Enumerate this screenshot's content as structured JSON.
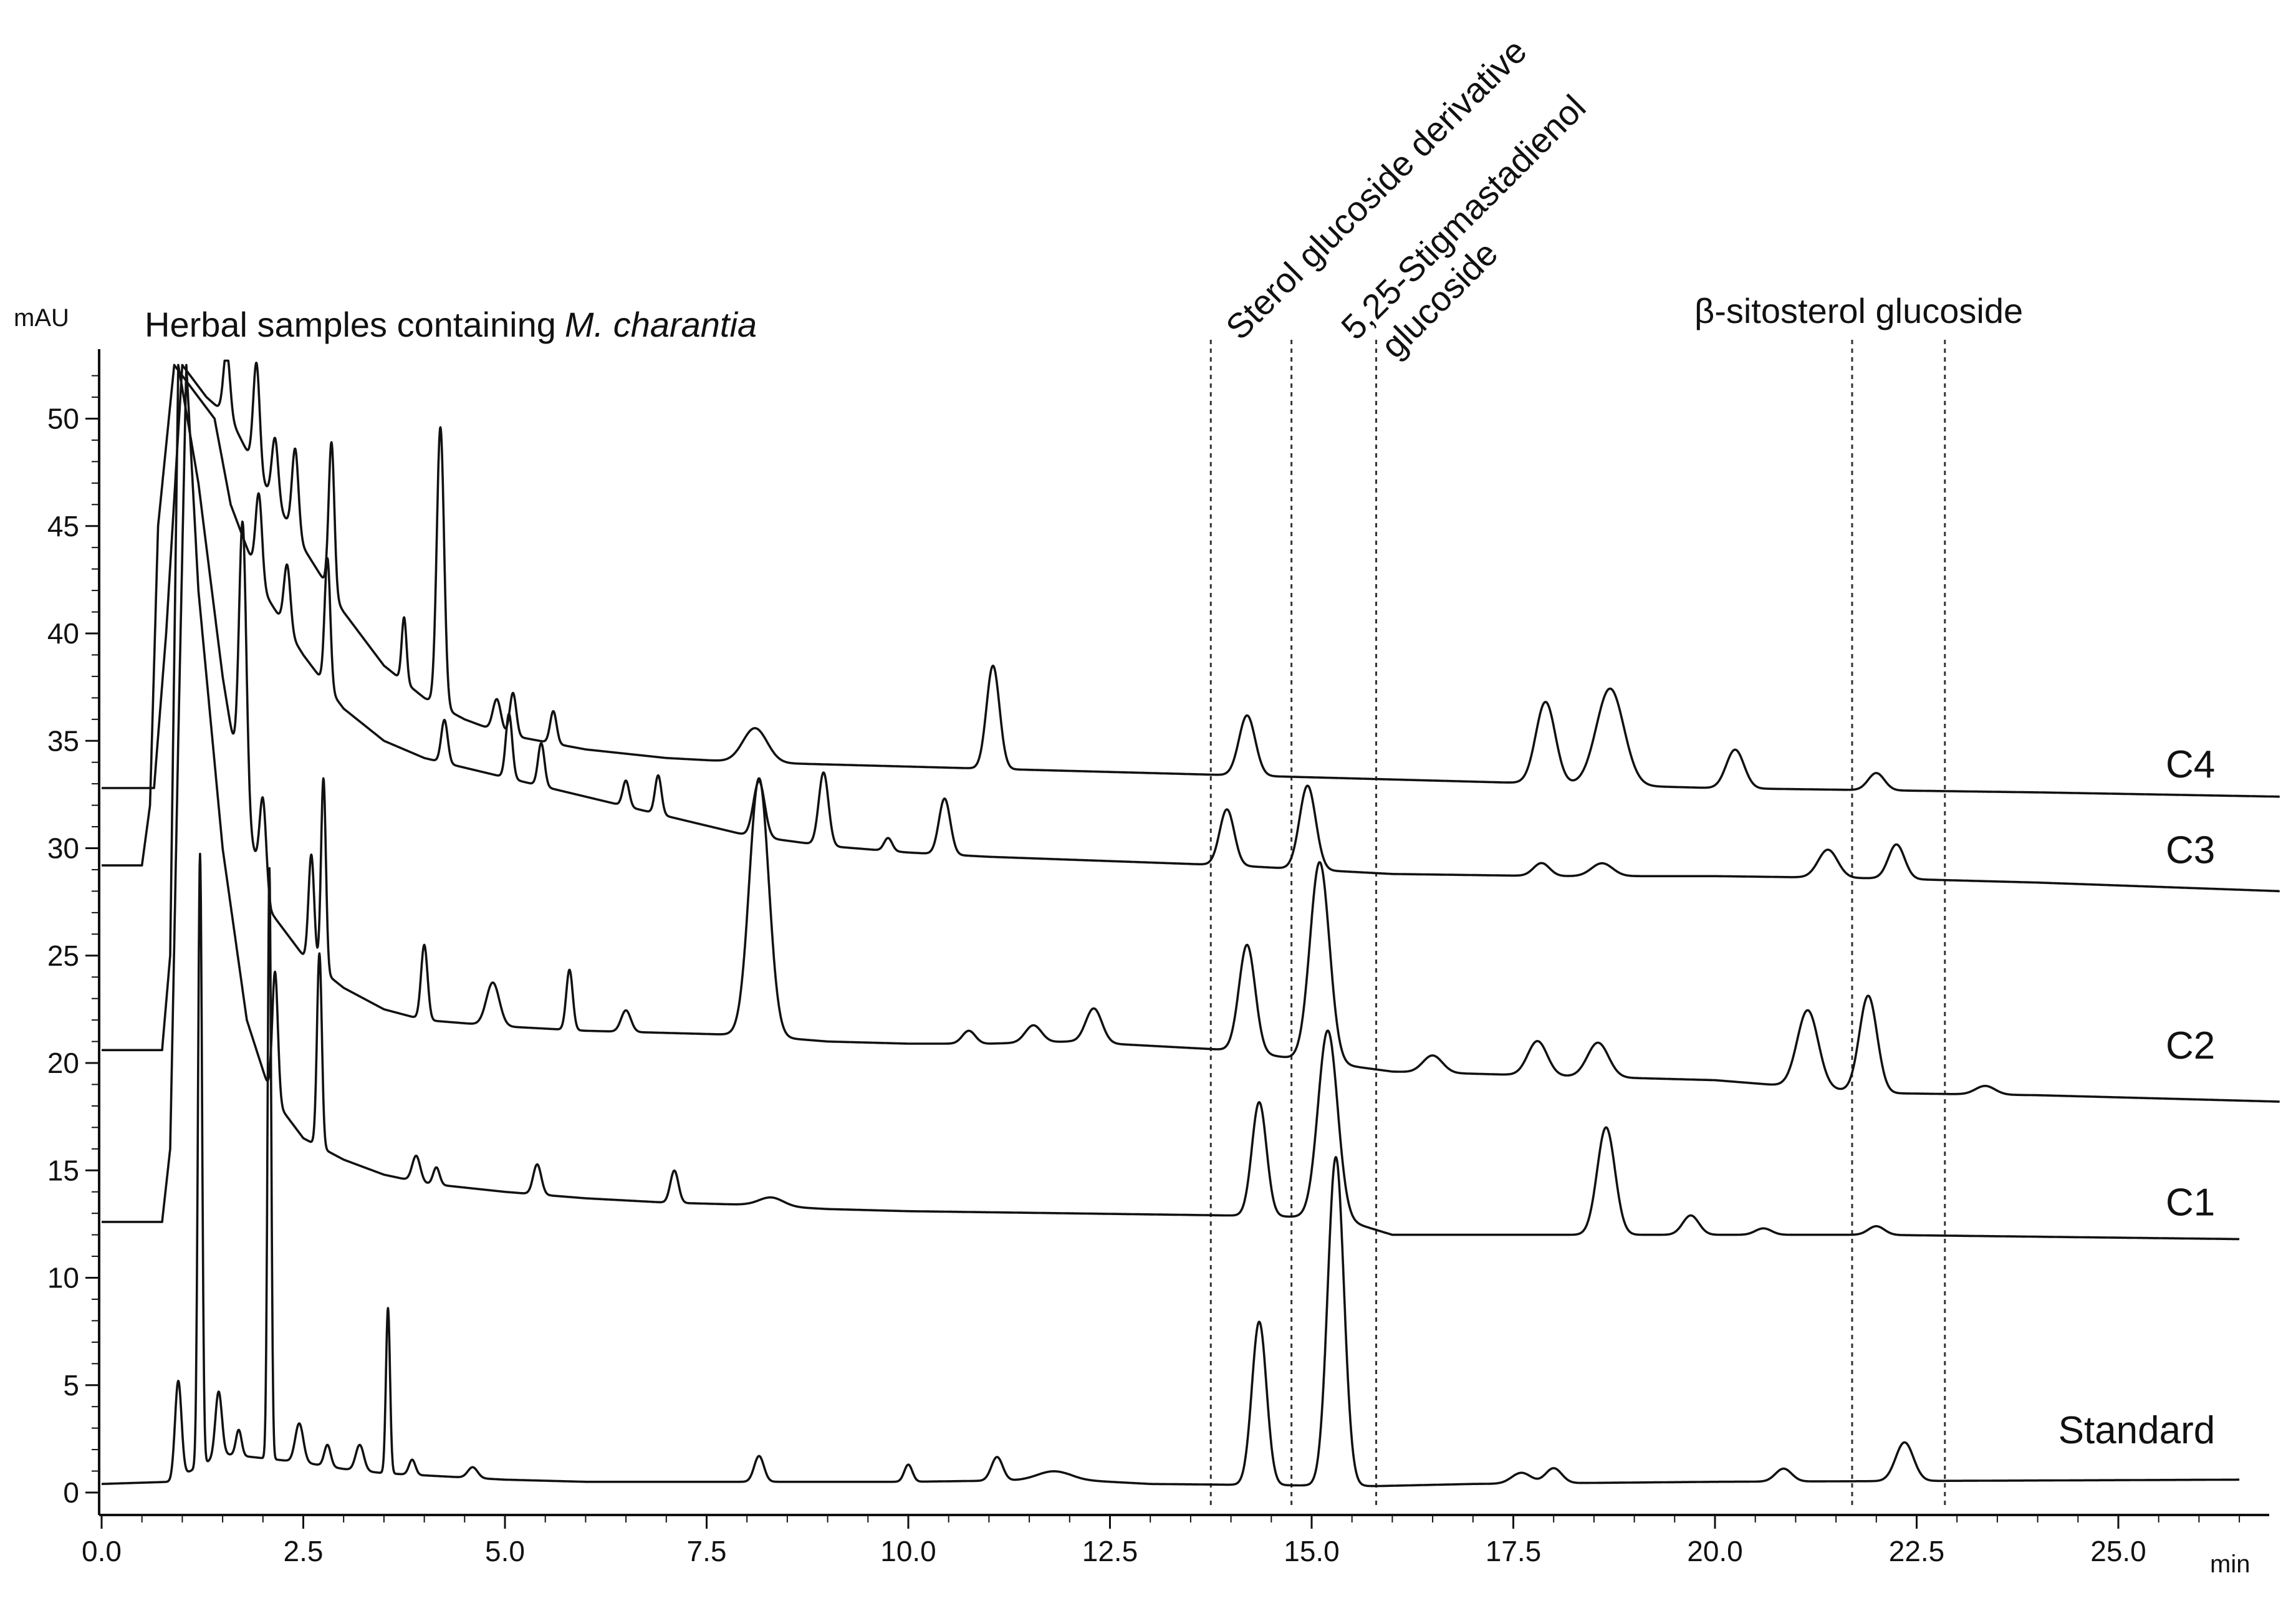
{
  "chart_data": {
    "type": "line",
    "title": "Herbal samples containing",
    "title_italic": "M. charantia",
    "ylabel": "mAU",
    "xlabel": "min",
    "xlim": [
      0,
      27
    ],
    "ylim": [
      -1,
      53
    ],
    "x_ticks": [
      {
        "value": 0,
        "label": "0.0"
      },
      {
        "value": 2.5,
        "label": "2.5"
      },
      {
        "value": 5,
        "label": "5.0"
      },
      {
        "value": 7.5,
        "label": "7.5"
      },
      {
        "value": 10,
        "label": "10.0"
      },
      {
        "value": 12.5,
        "label": "12.5"
      },
      {
        "value": 15,
        "label": "15.0"
      },
      {
        "value": 17.5,
        "label": "17.5"
      },
      {
        "value": 20,
        "label": "20.0"
      },
      {
        "value": 22.5,
        "label": "22.5"
      },
      {
        "value": 25,
        "label": "25.0"
      }
    ],
    "y_ticks": [
      {
        "value": 0,
        "label": "0"
      },
      {
        "value": 5,
        "label": "5"
      },
      {
        "value": 10,
        "label": "10"
      },
      {
        "value": 15,
        "label": "15"
      },
      {
        "value": 20,
        "label": "20"
      },
      {
        "value": 25,
        "label": "25"
      },
      {
        "value": 30,
        "label": "30"
      },
      {
        "value": 35,
        "label": "35"
      },
      {
        "value": 40,
        "label": "40"
      },
      {
        "value": 45,
        "label": "45"
      },
      {
        "value": 50,
        "label": "50"
      }
    ],
    "grid": false,
    "reference_lines": [
      13.75,
      14.75,
      15.8,
      21.7,
      22.85
    ],
    "annotations": [
      {
        "text": "Sterol glucoside derivative"
      },
      {
        "text": "5,25-Stigmastadienol"
      },
      {
        "text": "glucoside"
      },
      {
        "text": "β-sitosterol glucoside"
      }
    ],
    "series": [
      {
        "name": "C4",
        "label_at": [
          26.2,
          33.3
        ],
        "x_end": 27,
        "baseline": [
          [
            0,
            32.8
          ],
          [
            0.65,
            32.8
          ],
          [
            0.8,
            40
          ],
          [
            1.0,
            52.5
          ],
          [
            1.3,
            51
          ],
          [
            1.6,
            50
          ],
          [
            2.0,
            47
          ],
          [
            2.5,
            44
          ],
          [
            3.0,
            41
          ],
          [
            3.5,
            38.5
          ],
          [
            4.0,
            37
          ],
          [
            4.5,
            36
          ],
          [
            5.0,
            35.3
          ],
          [
            6.0,
            34.6
          ],
          [
            7.0,
            34.2
          ],
          [
            8.0,
            34.0
          ],
          [
            10.0,
            33.8
          ],
          [
            12.0,
            33.6
          ],
          [
            14.0,
            33.4
          ],
          [
            16.0,
            33.2
          ],
          [
            18.0,
            33.0
          ],
          [
            20.0,
            32.8
          ],
          [
            22.0,
            32.7
          ],
          [
            24.0,
            32.6
          ],
          [
            27.0,
            32.4
          ]
        ],
        "peaks": [
          {
            "rt": 1.55,
            "height": 3,
            "width": 0.04
          },
          {
            "rt": 1.92,
            "height": 5,
            "width": 0.04
          },
          {
            "rt": 2.15,
            "height": 3,
            "width": 0.04
          },
          {
            "rt": 2.4,
            "height": 4,
            "width": 0.04
          },
          {
            "rt": 2.85,
            "height": 7,
            "width": 0.035
          },
          {
            "rt": 3.75,
            "height": 3,
            "width": 0.03
          },
          {
            "rt": 4.2,
            "height": 13,
            "width": 0.045
          },
          {
            "rt": 4.9,
            "height": 1.5,
            "width": 0.05
          },
          {
            "rt": 5.1,
            "height": 2,
            "width": 0.04
          },
          {
            "rt": 5.6,
            "height": 1.5,
            "width": 0.04
          },
          {
            "rt": 8.1,
            "height": 1.6,
            "width": 0.15
          },
          {
            "rt": 11.05,
            "height": 4.8,
            "width": 0.08
          },
          {
            "rt": 14.2,
            "height": 2.8,
            "width": 0.1
          },
          {
            "rt": 17.9,
            "height": 3.8,
            "width": 0.12
          },
          {
            "rt": 18.7,
            "height": 4.5,
            "width": 0.17
          },
          {
            "rt": 20.25,
            "height": 1.8,
            "width": 0.11
          },
          {
            "rt": 22.0,
            "height": 0.8,
            "width": 0.1
          }
        ]
      },
      {
        "name": "C3",
        "label_at": [
          26.2,
          29.3
        ],
        "x_end": 27,
        "baseline": [
          [
            0,
            29.2
          ],
          [
            0.5,
            29.2
          ],
          [
            0.6,
            32
          ],
          [
            0.7,
            45
          ],
          [
            0.9,
            52.5
          ],
          [
            1.4,
            50
          ],
          [
            1.6,
            46
          ],
          [
            2.0,
            42
          ],
          [
            2.5,
            39
          ],
          [
            3.0,
            36.5
          ],
          [
            3.5,
            35
          ],
          [
            4.0,
            34.2
          ],
          [
            5.0,
            33.3
          ],
          [
            6.0,
            32.4
          ],
          [
            7.0,
            31.5
          ],
          [
            8.0,
            30.6
          ],
          [
            9.0,
            30.1
          ],
          [
            10.0,
            29.8
          ],
          [
            11.0,
            29.6
          ],
          [
            12.5,
            29.4
          ],
          [
            14.0,
            29.2
          ],
          [
            16.0,
            28.8
          ],
          [
            18.0,
            28.7
          ],
          [
            20.0,
            28.7
          ],
          [
            22.0,
            28.6
          ],
          [
            24.0,
            28.4
          ],
          [
            27.0,
            28.0
          ]
        ],
        "peaks": [
          {
            "rt": 1.95,
            "height": 4,
            "width": 0.04
          },
          {
            "rt": 2.3,
            "height": 3,
            "width": 0.04
          },
          {
            "rt": 2.8,
            "height": 6,
            "width": 0.035
          },
          {
            "rt": 4.25,
            "height": 2,
            "width": 0.04
          },
          {
            "rt": 5.05,
            "height": 3,
            "width": 0.04
          },
          {
            "rt": 5.45,
            "height": 2,
            "width": 0.04
          },
          {
            "rt": 6.5,
            "height": 1.2,
            "width": 0.04
          },
          {
            "rt": 6.9,
            "height": 1.8,
            "width": 0.04
          },
          {
            "rt": 8.15,
            "height": 2.6,
            "width": 0.07
          },
          {
            "rt": 8.95,
            "height": 3.4,
            "width": 0.06
          },
          {
            "rt": 9.75,
            "height": 0.6,
            "width": 0.05
          },
          {
            "rt": 10.45,
            "height": 2.6,
            "width": 0.07
          },
          {
            "rt": 13.95,
            "height": 2.6,
            "width": 0.09
          },
          {
            "rt": 14.95,
            "height": 3.9,
            "width": 0.1
          },
          {
            "rt": 17.85,
            "height": 0.6,
            "width": 0.1
          },
          {
            "rt": 18.6,
            "height": 0.6,
            "width": 0.13
          },
          {
            "rt": 21.4,
            "height": 1.3,
            "width": 0.12
          },
          {
            "rt": 22.25,
            "height": 1.6,
            "width": 0.1
          }
        ]
      },
      {
        "name": "C2",
        "label_at": [
          26.2,
          20.2
        ],
        "x_end": 27,
        "baseline": [
          [
            0,
            20.6
          ],
          [
            0.75,
            20.6
          ],
          [
            0.85,
            25
          ],
          [
            0.95,
            52.5
          ],
          [
            1.2,
            47
          ],
          [
            1.5,
            38
          ],
          [
            1.8,
            31
          ],
          [
            2.1,
            27
          ],
          [
            2.5,
            25
          ],
          [
            3.0,
            23.5
          ],
          [
            3.5,
            22.5
          ],
          [
            4.0,
            22.0
          ],
          [
            5.0,
            21.7
          ],
          [
            6.0,
            21.5
          ],
          [
            7.0,
            21.4
          ],
          [
            8.0,
            21.3
          ],
          [
            9.0,
            21.0
          ],
          [
            10.0,
            20.9
          ],
          [
            11.0,
            20.9
          ],
          [
            12.0,
            21.0
          ],
          [
            13.0,
            20.8
          ],
          [
            14.0,
            20.6
          ],
          [
            16.0,
            19.6
          ],
          [
            18.0,
            19.4
          ],
          [
            20.0,
            19.2
          ],
          [
            22.0,
            18.6
          ],
          [
            24.0,
            18.5
          ],
          [
            27.0,
            18.2
          ]
        ],
        "peaks": [
          {
            "rt": 1.75,
            "height": 13,
            "width": 0.045
          },
          {
            "rt": 2.0,
            "height": 4,
            "width": 0.04
          },
          {
            "rt": 2.6,
            "height": 5,
            "width": 0.035
          },
          {
            "rt": 2.75,
            "height": 9,
            "width": 0.03
          },
          {
            "rt": 4.0,
            "height": 3.5,
            "width": 0.04
          },
          {
            "rt": 4.85,
            "height": 2,
            "width": 0.08
          },
          {
            "rt": 5.8,
            "height": 2.8,
            "width": 0.04
          },
          {
            "rt": 6.5,
            "height": 1,
            "width": 0.06
          },
          {
            "rt": 8.15,
            "height": 12,
            "width": 0.12
          },
          {
            "rt": 10.75,
            "height": 0.6,
            "width": 0.08
          },
          {
            "rt": 11.55,
            "height": 0.8,
            "width": 0.1
          },
          {
            "rt": 12.3,
            "height": 1.6,
            "width": 0.1
          },
          {
            "rt": 14.2,
            "height": 5,
            "width": 0.1
          },
          {
            "rt": 15.1,
            "height": 9.3,
            "width": 0.12
          },
          {
            "rt": 16.5,
            "height": 0.8,
            "width": 0.12
          },
          {
            "rt": 17.8,
            "height": 1.6,
            "width": 0.12
          },
          {
            "rt": 18.55,
            "height": 1.6,
            "width": 0.13
          },
          {
            "rt": 21.15,
            "height": 3.6,
            "width": 0.13
          },
          {
            "rt": 21.9,
            "height": 4.5,
            "width": 0.11
          },
          {
            "rt": 23.35,
            "height": 0.4,
            "width": 0.12
          }
        ]
      },
      {
        "name": "C1",
        "label_at": [
          26.2,
          12.9
        ],
        "x_end": 26.5,
        "baseline": [
          [
            0,
            12.6
          ],
          [
            0.75,
            12.6
          ],
          [
            0.85,
            16
          ],
          [
            0.95,
            35
          ],
          [
            1.05,
            52.5
          ],
          [
            1.2,
            42
          ],
          [
            1.5,
            30
          ],
          [
            1.8,
            22
          ],
          [
            2.1,
            18.5
          ],
          [
            2.5,
            16.5
          ],
          [
            3.0,
            15.5
          ],
          [
            3.5,
            14.8
          ],
          [
            4.0,
            14.4
          ],
          [
            5.0,
            14.0
          ],
          [
            6.0,
            13.7
          ],
          [
            7.0,
            13.5
          ],
          [
            8.0,
            13.4
          ],
          [
            9.0,
            13.2
          ],
          [
            10.0,
            13.1
          ],
          [
            12.0,
            13.0
          ],
          [
            14.0,
            12.9
          ],
          [
            15.3,
            12.8
          ],
          [
            16.0,
            12.0
          ],
          [
            18.0,
            12.0
          ],
          [
            20.0,
            12.0
          ],
          [
            22.0,
            12.0
          ],
          [
            26.5,
            11.8
          ]
        ],
        "peaks": [
          {
            "rt": 2.15,
            "height": 6,
            "width": 0.035
          },
          {
            "rt": 2.7,
            "height": 9,
            "width": 0.03
          },
          {
            "rt": 3.9,
            "height": 1.2,
            "width": 0.05
          },
          {
            "rt": 4.15,
            "height": 0.8,
            "width": 0.04
          },
          {
            "rt": 5.4,
            "height": 1.4,
            "width": 0.05
          },
          {
            "rt": 7.1,
            "height": 1.5,
            "width": 0.05
          },
          {
            "rt": 8.3,
            "height": 0.4,
            "width": 0.15
          },
          {
            "rt": 14.35,
            "height": 5.3,
            "width": 0.09
          },
          {
            "rt": 15.2,
            "height": 8.7,
            "width": 0.12
          },
          {
            "rt": 18.65,
            "height": 5,
            "width": 0.11
          },
          {
            "rt": 19.7,
            "height": 0.9,
            "width": 0.1
          },
          {
            "rt": 20.6,
            "height": 0.3,
            "width": 0.1
          },
          {
            "rt": 22.0,
            "height": 0.4,
            "width": 0.1
          }
        ]
      },
      {
        "name": "Standard",
        "label_at": [
          26.2,
          2.3
        ],
        "x_end": 26.5,
        "baseline": [
          [
            0,
            0.4
          ],
          [
            0.85,
            0.5
          ],
          [
            1.5,
            1.8
          ],
          [
            2.0,
            1.6
          ],
          [
            2.5,
            1.4
          ],
          [
            3.0,
            1.1
          ],
          [
            3.5,
            0.9
          ],
          [
            4.0,
            0.8
          ],
          [
            5.0,
            0.6
          ],
          [
            6.0,
            0.5
          ],
          [
            8.0,
            0.5
          ],
          [
            10.0,
            0.5
          ],
          [
            12.0,
            0.6
          ],
          [
            13.0,
            0.4
          ],
          [
            15.8,
            0.3
          ],
          [
            17.0,
            0.4
          ],
          [
            20.0,
            0.5
          ],
          [
            26.5,
            0.6
          ]
        ],
        "peaks": [
          {
            "rt": 0.95,
            "height": 4.5,
            "width": 0.04
          },
          {
            "rt": 1.22,
            "height": 28.5,
            "width": 0.025
          },
          {
            "rt": 1.45,
            "height": 3,
            "width": 0.04
          },
          {
            "rt": 1.7,
            "height": 1.2,
            "width": 0.035
          },
          {
            "rt": 2.08,
            "height": 27.5,
            "width": 0.022
          },
          {
            "rt": 2.45,
            "height": 1.8,
            "width": 0.05
          },
          {
            "rt": 2.8,
            "height": 1.0,
            "width": 0.04
          },
          {
            "rt": 3.2,
            "height": 1.2,
            "width": 0.05
          },
          {
            "rt": 3.55,
            "height": 7.7,
            "width": 0.025
          },
          {
            "rt": 3.85,
            "height": 0.7,
            "width": 0.04
          },
          {
            "rt": 4.6,
            "height": 0.5,
            "width": 0.06
          },
          {
            "rt": 8.15,
            "height": 1.2,
            "width": 0.06
          },
          {
            "rt": 10.0,
            "height": 0.8,
            "width": 0.05
          },
          {
            "rt": 11.1,
            "height": 1.1,
            "width": 0.07
          },
          {
            "rt": 11.8,
            "height": 0.4,
            "width": 0.2
          },
          {
            "rt": 14.35,
            "height": 7.6,
            "width": 0.09
          },
          {
            "rt": 15.3,
            "height": 15.3,
            "width": 0.1
          },
          {
            "rt": 17.6,
            "height": 0.5,
            "width": 0.12
          },
          {
            "rt": 18.0,
            "height": 0.7,
            "width": 0.1
          },
          {
            "rt": 20.85,
            "height": 0.6,
            "width": 0.1
          },
          {
            "rt": 22.35,
            "height": 1.8,
            "width": 0.11
          }
        ]
      }
    ]
  }
}
